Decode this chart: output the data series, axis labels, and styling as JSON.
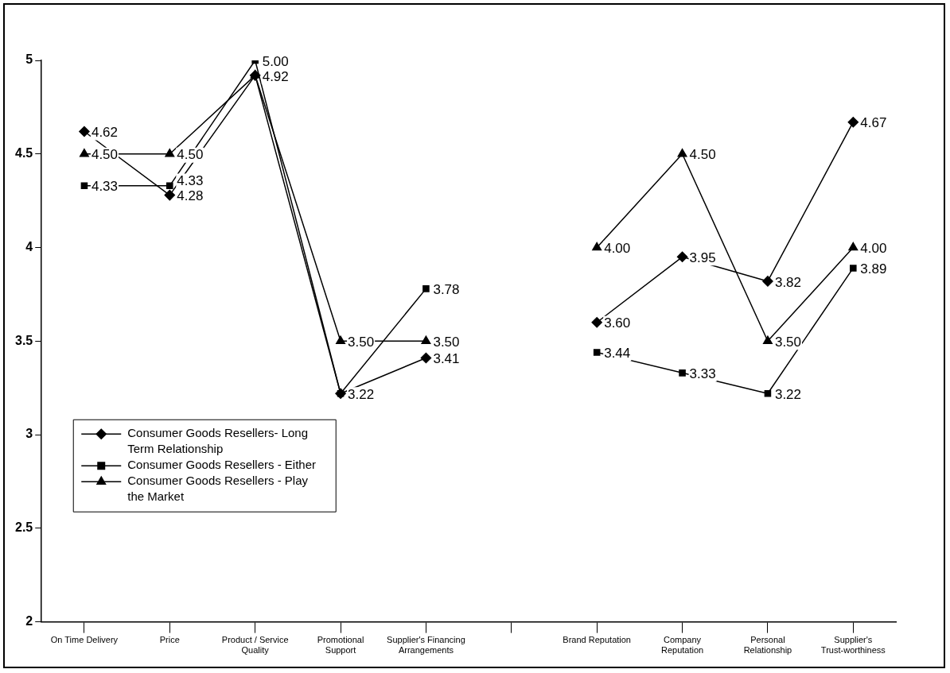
{
  "chart_data": {
    "type": "line",
    "categories": [
      "On Time Delivery",
      "Price",
      "Product / Service Quality",
      "Promotional Support",
      "Supplier's Financing Arrangements",
      null,
      "Brand Reputation",
      "Company Reputation",
      "Personal Relationship",
      "Supplier's Trust-worthiness"
    ],
    "series": [
      {
        "name": "Consumer Goods Resellers- Long Term Relationship",
        "color": "#000000",
        "marker": "diamond",
        "values": [
          4.62,
          4.28,
          4.92,
          3.22,
          3.41,
          null,
          3.6,
          3.95,
          3.82,
          4.67
        ],
        "value_labels": [
          "4.62",
          "4.28",
          "4.92",
          null,
          "3.41",
          null,
          "3.60",
          "3.95",
          "3.82",
          "4.67"
        ]
      },
      {
        "name": "Consumer Goods Resellers - Either",
        "color": "#000000",
        "marker": "square",
        "values": [
          4.33,
          4.33,
          5.0,
          3.22,
          3.78,
          null,
          3.44,
          3.33,
          3.22,
          3.89
        ],
        "value_labels": [
          "4.33",
          "4.33",
          "5.00",
          "3.22",
          "3.78",
          null,
          "3.44",
          "3.33",
          "3.22",
          "3.89"
        ]
      },
      {
        "name": "Consumer Goods Resellers - Play the Market",
        "color": "#000000",
        "marker": "triangle",
        "values": [
          4.5,
          4.5,
          4.92,
          3.5,
          3.5,
          null,
          4.0,
          4.5,
          3.5,
          4.0
        ],
        "value_labels": [
          "4.50",
          "4.50",
          null,
          "3.50",
          "3.50",
          null,
          "4.00",
          "4.50",
          "3.50",
          "4.00"
        ]
      }
    ],
    "ylim": [
      2,
      5
    ],
    "yticks": [
      2,
      2.5,
      3,
      3.5,
      4,
      4.5,
      5
    ],
    "grid": false,
    "legend": "left",
    "line_style": "solid"
  }
}
